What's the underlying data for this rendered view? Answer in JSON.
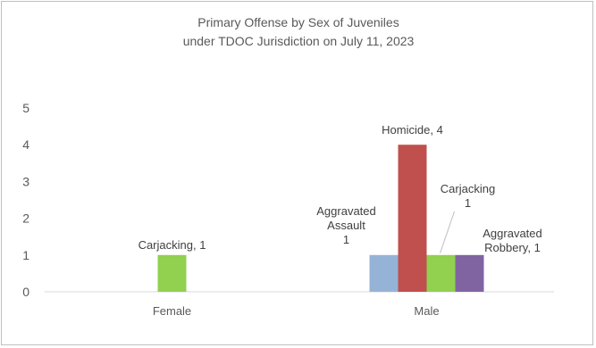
{
  "chart_data": {
    "type": "bar",
    "title": "Primary Offense by Sex of Juveniles under TDOC Jurisdiction on July 11, 2023",
    "title_lines": [
      "Primary Offense by Sex of Juveniles",
      "under TDOC Jurisdiction on July 11, 2023"
    ],
    "xlabel": "",
    "ylabel": "",
    "ylim": [
      0,
      5
    ],
    "yticks": [
      "0",
      "1",
      "2",
      "3",
      "4",
      "5"
    ],
    "grid": false,
    "legend": "none",
    "categories": [
      "Female",
      "Male"
    ],
    "series": [
      {
        "values": [
          null,
          1
        ],
        "color": "#95B3D7",
        "label_lines": [
          "",
          "Aggravated|Assault|1"
        ]
      },
      {
        "values": [
          null,
          4
        ],
        "color": "#C0504D",
        "label_lines": [
          "",
          "Homicide, 4"
        ]
      },
      {
        "values": [
          1,
          1
        ],
        "color": "#92D050",
        "label_lines": [
          "Carjacking, 1",
          "Carjacking|1"
        ]
      },
      {
        "values": [
          null,
          1
        ],
        "color": "#8064A2",
        "label_lines": [
          "",
          "Aggravated|Robbery, 1"
        ]
      }
    ]
  }
}
